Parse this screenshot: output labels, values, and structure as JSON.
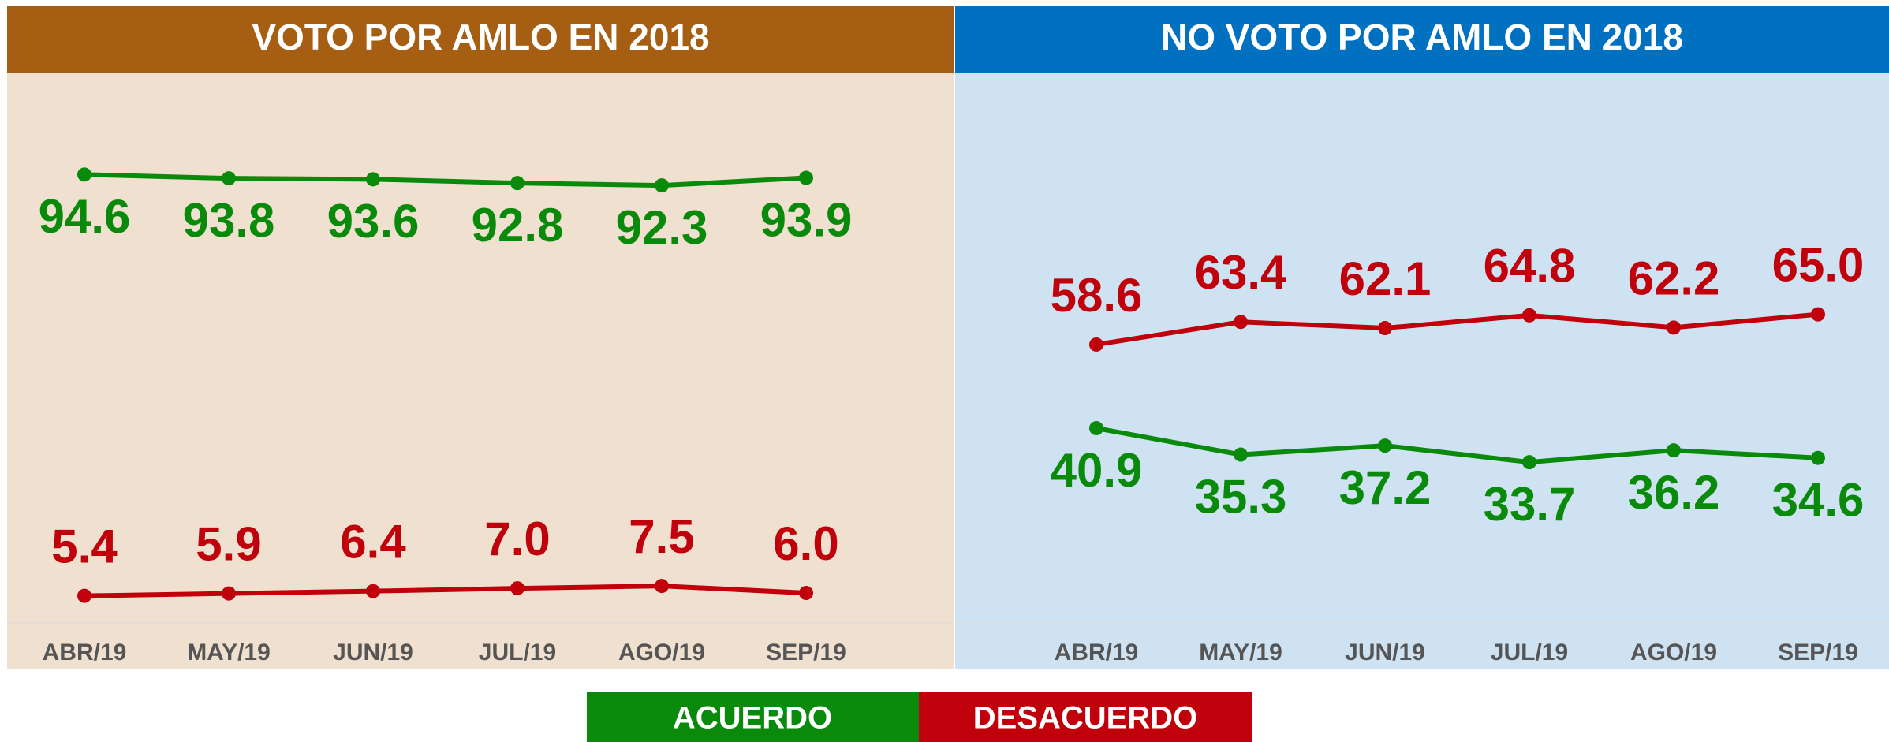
{
  "chart_data": [
    {
      "type": "line",
      "title": "VOTO POR AMLO EN 2018",
      "header_color": "#a65f12",
      "background": "#efe0d0",
      "categories": [
        "ABR/19",
        "MAY/19",
        "JUN/19",
        "JUL/19",
        "AGO/19",
        "SEP/19"
      ],
      "ylim": [
        0,
        100
      ],
      "series": [
        {
          "name": "ACUERDO",
          "color": "#0a8a0a",
          "values": [
            94.6,
            93.8,
            93.6,
            92.8,
            92.3,
            93.9
          ]
        },
        {
          "name": "DESACUERDO",
          "color": "#c0000a",
          "values": [
            5.4,
            5.9,
            6.4,
            7.0,
            7.5,
            6.0
          ],
          "value_labels": [
            "5.4",
            "5.9",
            "6.4",
            "7.0",
            "7.5",
            "6.0"
          ]
        }
      ]
    },
    {
      "type": "line",
      "title": "NO VOTO POR AMLO EN 2018",
      "header_color": "#0070c0",
      "background": "#cfe2f2",
      "categories": [
        "ABR/19",
        "MAY/19",
        "JUN/19",
        "JUL/19",
        "AGO/19",
        "SEP/19"
      ],
      "ylim": [
        0,
        100
      ],
      "series": [
        {
          "name": "ACUERDO",
          "color": "#0a8a0a",
          "values": [
            40.9,
            35.3,
            37.2,
            33.7,
            36.2,
            34.6
          ]
        },
        {
          "name": "DESACUERDO",
          "color": "#c0000a",
          "values": [
            58.6,
            63.4,
            62.1,
            64.8,
            62.2,
            65.0
          ],
          "value_labels": [
            "58.6",
            "63.4",
            "62.1",
            "64.8",
            "62.2",
            "65.0"
          ]
        }
      ]
    }
  ]
}
